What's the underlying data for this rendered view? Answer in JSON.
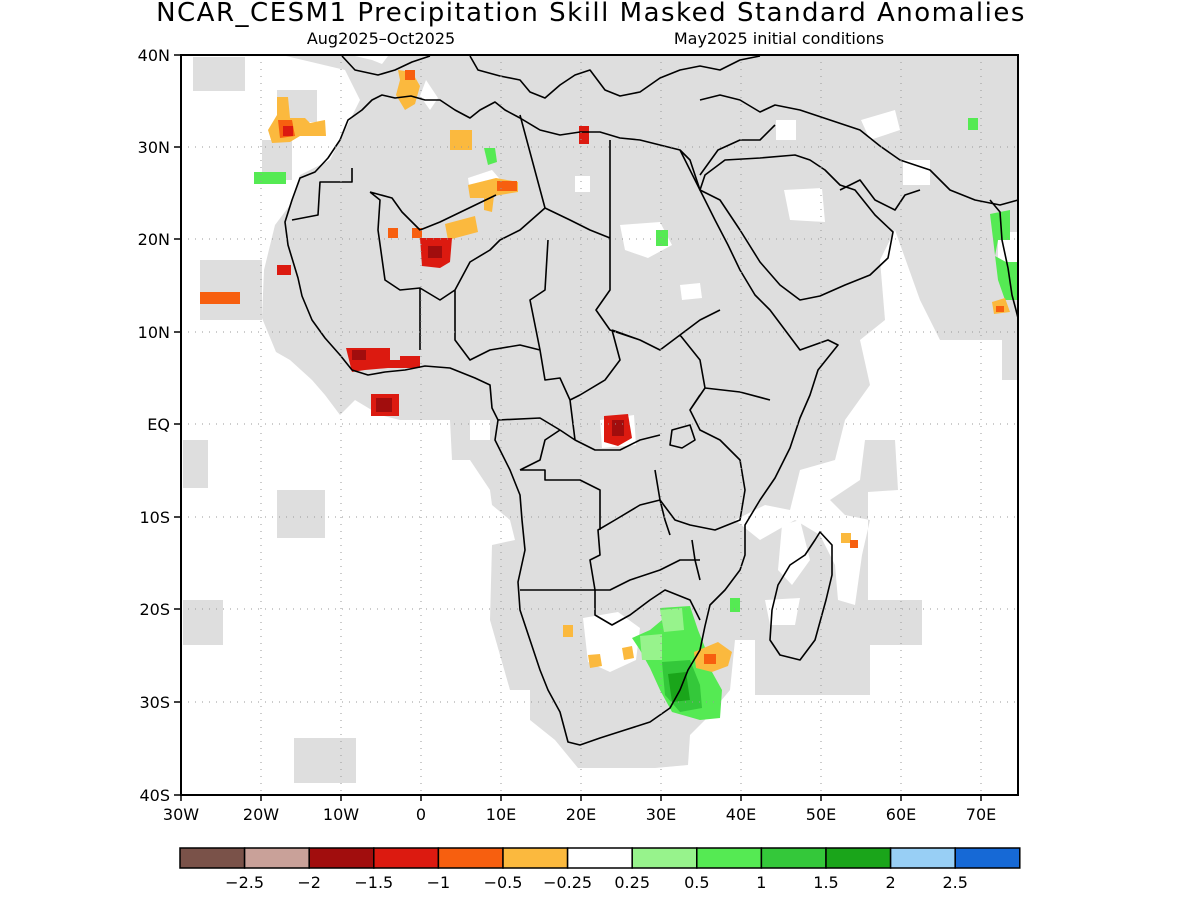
{
  "title": "NCAR_CESM1 Precipitation Skill Masked Standard Anomalies",
  "subtitle_left": "Aug2025–Oct2025",
  "subtitle_right": "May2025 initial conditions",
  "lat_labels": [
    "40N",
    "30N",
    "20N",
    "10N",
    "EQ",
    "10S",
    "20S",
    "30S",
    "40S"
  ],
  "lon_labels": [
    "30W",
    "20W",
    "10W",
    "0",
    "10E",
    "20E",
    "30E",
    "40E",
    "50E",
    "60E",
    "70E"
  ],
  "colorbar": {
    "colors": [
      "#7a5249",
      "#c9a199",
      "#a10d0d",
      "#dc1a10",
      "#f75f0f",
      "#fbb93e",
      "#ffffff",
      "#97f38c",
      "#55ea53",
      "#34c83a",
      "#1aa51a",
      "#98cff5",
      "#1669d6"
    ],
    "labels": [
      "−2.5",
      "−2",
      "−1.5",
      "−1",
      "−0.5",
      "−0.25",
      "0.25",
      "0.5",
      "1",
      "1.5",
      "2",
      "2.5"
    ]
  },
  "colors": {
    "mask_gray": "#dedede",
    "grid": "#999999",
    "outline": "#000000"
  }
}
